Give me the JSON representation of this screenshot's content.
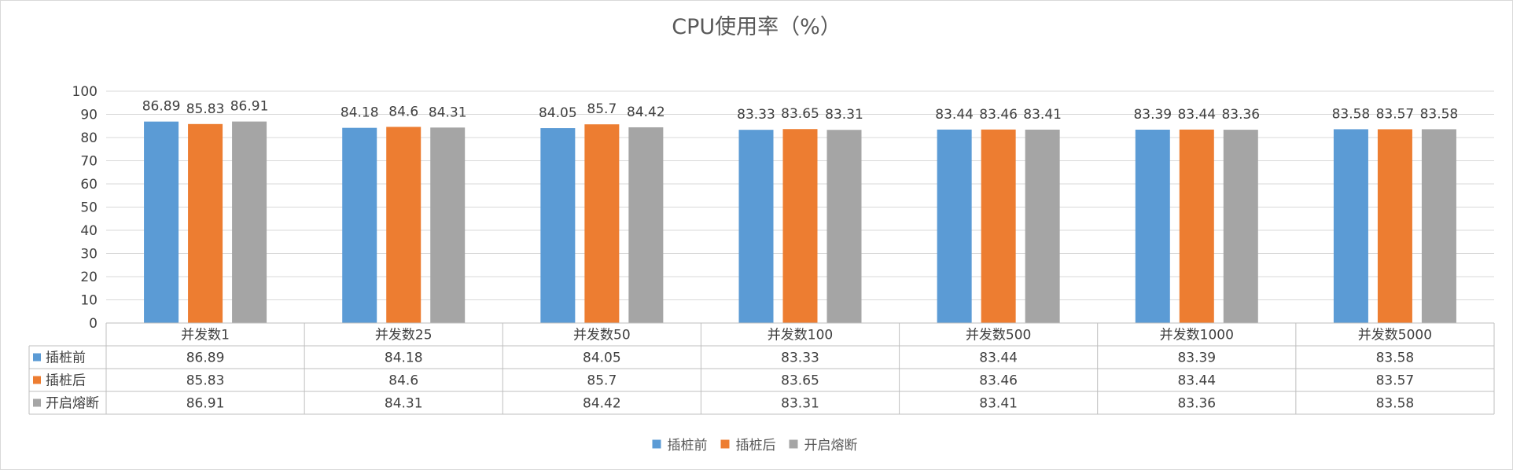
{
  "chart_data": {
    "type": "bar",
    "title": "CPU使用率（%）",
    "xlabel": "",
    "ylabel": "",
    "ylim": [
      0,
      100
    ],
    "yticks": [
      0,
      10,
      20,
      30,
      40,
      50,
      60,
      70,
      80,
      90,
      100
    ],
    "grid": true,
    "legend_position": "bottom",
    "data_table": true,
    "categories": [
      "并发数1",
      "并发数25",
      "并发数50",
      "并发数100",
      "并发数500",
      "并发数1000",
      "并发数5000"
    ],
    "series": [
      {
        "name": "插桩前",
        "color": "#5B9BD5",
        "values": [
          86.89,
          84.18,
          84.05,
          83.33,
          83.44,
          83.39,
          83.58
        ]
      },
      {
        "name": "插桩后",
        "color": "#ED7D31",
        "values": [
          85.83,
          84.6,
          85.7,
          83.65,
          83.46,
          83.44,
          83.57
        ]
      },
      {
        "name": "开启熔断",
        "color": "#A5A5A5",
        "values": [
          86.91,
          84.31,
          84.42,
          83.31,
          83.41,
          83.36,
          83.58
        ]
      }
    ]
  }
}
